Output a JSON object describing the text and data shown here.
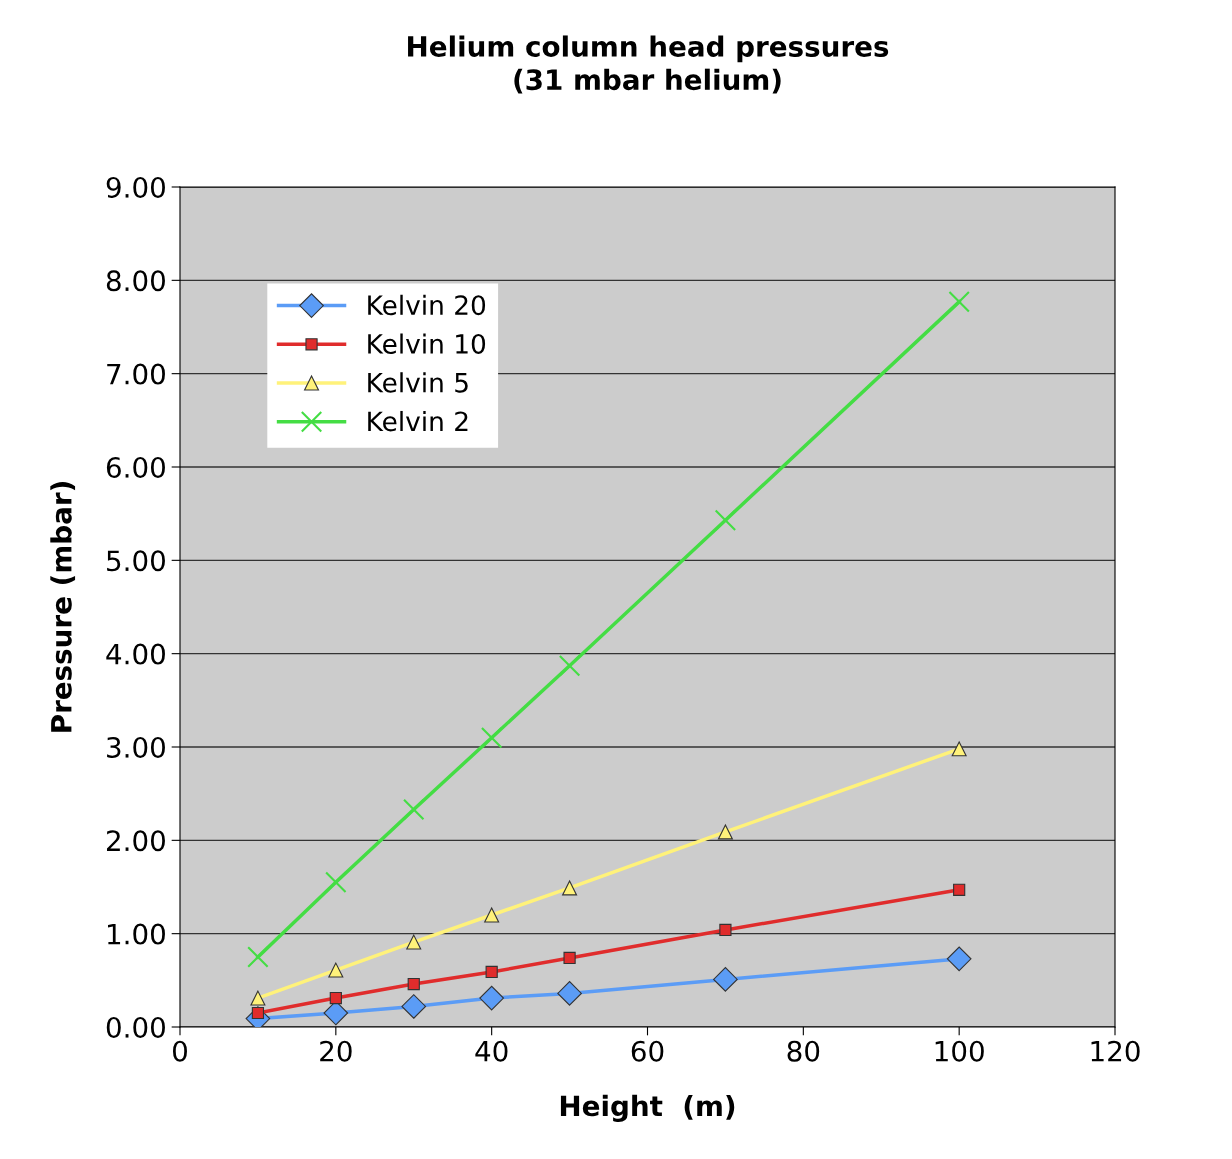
{
  "chart_data": {
    "type": "line",
    "title": "Helium column head pressures\n(31 mbar helium)",
    "xlabel": "Height  (m)",
    "ylabel": "Pressure (mbar)",
    "x": [
      10,
      20,
      30,
      40,
      50,
      70,
      100
    ],
    "series": [
      {
        "name": "Kelvin 20",
        "color": "#5b9cf6",
        "marker": "diamond",
        "values": [
          0.09,
          0.15,
          0.22,
          0.31,
          0.36,
          0.51,
          0.73
        ]
      },
      {
        "name": "Kelvin 10",
        "color": "#e02c2c",
        "marker": "square",
        "values": [
          0.15,
          0.31,
          0.46,
          0.59,
          0.74,
          1.04,
          1.47
        ]
      },
      {
        "name": "Kelvin 5",
        "color": "#fff27a",
        "marker": "triangle",
        "values": [
          0.31,
          0.61,
          0.91,
          1.2,
          1.49,
          2.09,
          2.98
        ]
      },
      {
        "name": "Kelvin 2",
        "color": "#44dd44",
        "marker": "cross",
        "values": [
          0.75,
          1.55,
          2.33,
          3.1,
          3.87,
          5.43,
          7.77
        ]
      }
    ],
    "xlim": [
      0,
      120
    ],
    "xticks": [
      0,
      20,
      40,
      60,
      80,
      100,
      120
    ],
    "ylim": [
      0,
      9
    ],
    "yticks": [
      {
        "value": 0,
        "label": "0.00"
      },
      {
        "value": 1,
        "label": "1.00"
      },
      {
        "value": 2,
        "label": "2.00"
      },
      {
        "value": 3,
        "label": "3.00"
      },
      {
        "value": 4,
        "label": "4.00"
      },
      {
        "value": 5,
        "label": "5.00"
      },
      {
        "value": 6,
        "label": "6.00"
      },
      {
        "value": 7,
        "label": "7.00"
      },
      {
        "value": 8,
        "label": "8.00"
      },
      {
        "value": 9,
        "label": "9.00"
      }
    ],
    "grid": "y",
    "legend": "top left",
    "line_style": "solid"
  }
}
